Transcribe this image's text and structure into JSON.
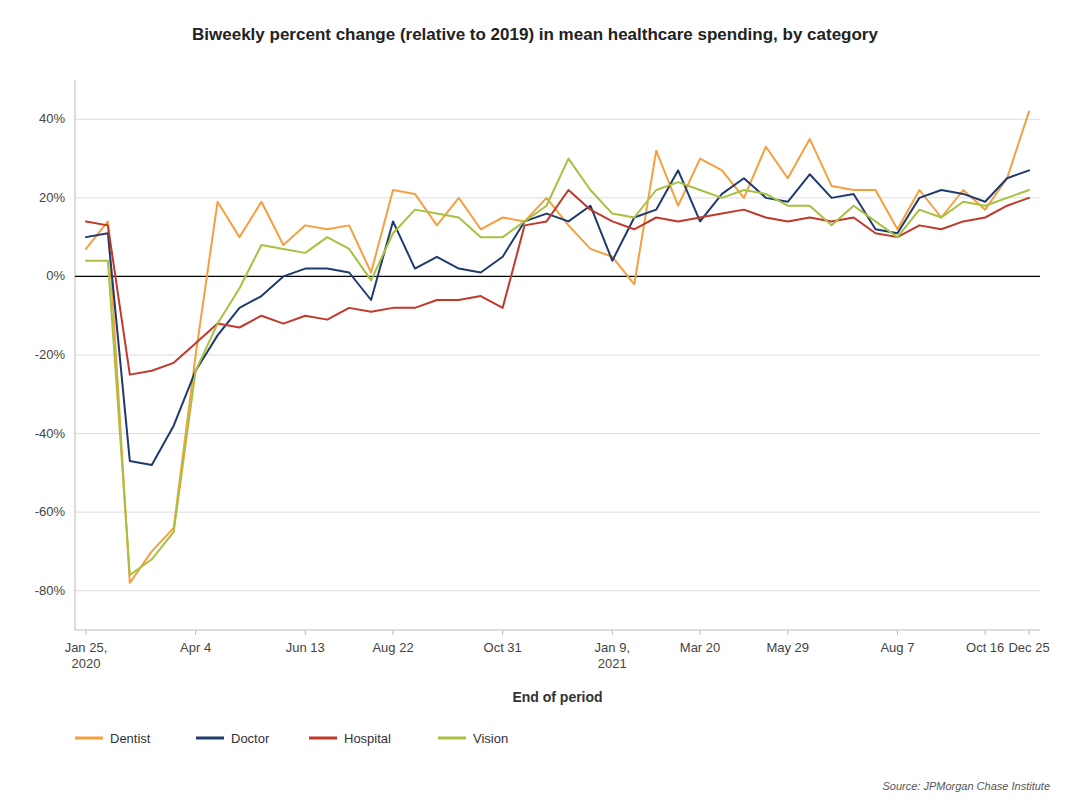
{
  "chart_data": {
    "type": "line",
    "title": "Biweekly percent change (relative to 2019) in mean healthcare spending, by category",
    "x_label": "End of period",
    "source": "Source: JPMorgan Chase Institute",
    "categories": [
      "Jan 25,\n2020",
      null,
      null,
      null,
      null,
      "Apr 4",
      null,
      null,
      null,
      null,
      "Jun 13",
      null,
      null,
      null,
      "Aug 22",
      null,
      null,
      null,
      null,
      "Oct 31",
      null,
      null,
      null,
      null,
      "Jan 9,\n2021",
      null,
      null,
      null,
      "Mar 20",
      null,
      null,
      null,
      "May 29",
      null,
      null,
      null,
      null,
      "Aug 7",
      null,
      null,
      null,
      "Oct 16",
      null,
      "Dec 25"
    ],
    "series": [
      {
        "name": "Dentist",
        "color": "#F5A040",
        "values": [
          7,
          14,
          -78,
          -70,
          -64,
          -20,
          19,
          10,
          19,
          8,
          13,
          12,
          13,
          1,
          22,
          21,
          13,
          20,
          12,
          15,
          14,
          20,
          13,
          7,
          5,
          -2,
          32,
          18,
          30,
          27,
          20,
          33,
          25,
          35,
          23,
          22,
          22,
          12,
          22,
          15,
          22,
          17,
          25,
          42
        ]
      },
      {
        "name": "Doctor",
        "color": "#1F3A6E",
        "values": [
          10,
          11,
          -47,
          -48,
          -38,
          -24,
          -15,
          -8,
          -5,
          0,
          2,
          2,
          1,
          -6,
          14,
          2,
          5,
          2,
          1,
          5,
          14,
          16,
          14,
          18,
          4,
          15,
          17,
          27,
          14,
          21,
          25,
          20,
          19,
          26,
          20,
          21,
          12,
          11,
          20,
          22,
          21,
          19,
          25,
          27
        ]
      },
      {
        "name": "Hospital",
        "color": "#C0392B",
        "values": [
          14,
          13,
          -25,
          -24,
          -22,
          -17,
          -12,
          -13,
          -10,
          -12,
          -10,
          -11,
          -8,
          -9,
          -8,
          -8,
          -6,
          -6,
          -5,
          -8,
          13,
          14,
          22,
          17,
          14,
          12,
          15,
          14,
          15,
          16,
          17,
          15,
          14,
          15,
          14,
          15,
          11,
          10,
          13,
          12,
          14,
          15,
          18,
          20
        ]
      },
      {
        "name": "Vision",
        "color": "#A8C040",
        "values": [
          4,
          4,
          -76,
          -72,
          -65,
          -24,
          -12,
          -3,
          8,
          7,
          6,
          10,
          7,
          -1,
          11,
          17,
          16,
          15,
          10,
          10,
          14,
          18,
          30,
          22,
          16,
          15,
          22,
          24,
          22,
          20,
          22,
          21,
          18,
          18,
          13,
          18,
          14,
          10,
          17,
          15,
          19,
          18,
          20,
          22
        ]
      }
    ],
    "ylim": [
      -90,
      50
    ],
    "yticks": [
      {
        "value": -80,
        "label": "-80%"
      },
      {
        "value": -60,
        "label": "-60%"
      },
      {
        "value": -40,
        "label": "-40%"
      },
      {
        "value": -20,
        "label": "-20%"
      },
      {
        "value": 0,
        "label": "0%"
      },
      {
        "value": 20,
        "label": "20%"
      },
      {
        "value": 40,
        "label": "40%"
      }
    ],
    "grid": true,
    "legend": "bottom"
  }
}
